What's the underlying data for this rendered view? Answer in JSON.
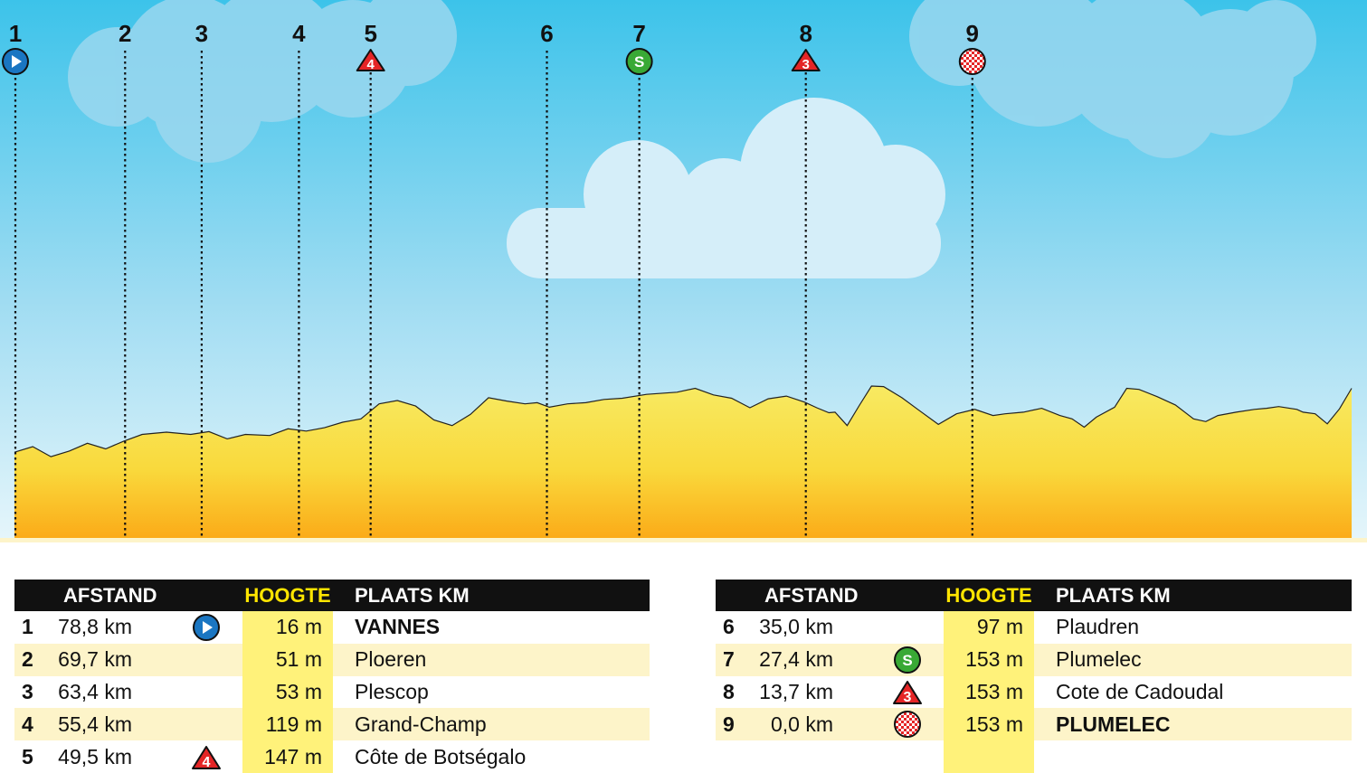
{
  "chart_data": {
    "type": "area",
    "x_unit": "km",
    "y_unit": "m",
    "profile": [
      [
        0,
        16
      ],
      [
        1.5,
        26
      ],
      [
        3.0,
        8
      ],
      [
        4.5,
        18
      ],
      [
        6.0,
        32
      ],
      [
        7.5,
        22
      ],
      [
        9.0,
        36
      ],
      [
        10.5,
        48
      ],
      [
        12.5,
        52
      ],
      [
        14.5,
        48
      ],
      [
        16.0,
        53
      ],
      [
        17.5,
        40
      ],
      [
        19.0,
        48
      ],
      [
        21.0,
        46
      ],
      [
        22.5,
        58
      ],
      [
        24.0,
        54
      ],
      [
        25.5,
        60
      ],
      [
        27.0,
        70
      ],
      [
        28.5,
        76
      ],
      [
        30.0,
        103
      ],
      [
        31.5,
        109
      ],
      [
        33.0,
        99
      ],
      [
        34.5,
        74
      ],
      [
        36.0,
        64
      ],
      [
        37.5,
        84
      ],
      [
        39.0,
        114
      ],
      [
        40.5,
        108
      ],
      [
        42.0,
        103
      ],
      [
        43.0,
        105
      ],
      [
        44.0,
        97
      ],
      [
        45.5,
        103
      ],
      [
        47.0,
        105
      ],
      [
        48.5,
        111
      ],
      [
        50.0,
        113
      ],
      [
        52.0,
        120
      ],
      [
        54.5,
        124
      ],
      [
        56.0,
        131
      ],
      [
        57.5,
        119
      ],
      [
        59.0,
        113
      ],
      [
        60.5,
        96
      ],
      [
        62.0,
        112
      ],
      [
        63.5,
        117
      ],
      [
        65.0,
        106
      ],
      [
        66.0,
        96
      ],
      [
        67.0,
        87
      ],
      [
        67.5,
        88
      ],
      [
        68.5,
        64
      ],
      [
        69.5,
        100
      ],
      [
        70.5,
        135
      ],
      [
        71.5,
        134
      ],
      [
        73.0,
        114
      ],
      [
        74.5,
        90
      ],
      [
        76.0,
        66
      ],
      [
        77.5,
        85
      ],
      [
        79.0,
        93
      ],
      [
        80.5,
        82
      ],
      [
        81.5,
        85
      ],
      [
        83.0,
        88
      ],
      [
        84.5,
        95
      ],
      [
        86.0,
        82
      ],
      [
        87.0,
        76
      ],
      [
        88.0,
        61
      ],
      [
        89.0,
        79
      ],
      [
        90.5,
        97
      ],
      [
        91.5,
        131
      ],
      [
        92.5,
        129
      ],
      [
        94.0,
        116
      ],
      [
        95.5,
        101
      ],
      [
        97.0,
        76
      ],
      [
        98.0,
        71
      ],
      [
        99.0,
        82
      ],
      [
        100.5,
        88
      ],
      [
        102.0,
        93
      ],
      [
        103.0,
        95
      ],
      [
        104.0,
        98
      ],
      [
        105.5,
        93
      ],
      [
        106.0,
        88
      ],
      [
        107.0,
        85
      ],
      [
        108.0,
        67
      ],
      [
        109.0,
        94
      ],
      [
        110.0,
        131
      ]
    ],
    "markers": [
      {
        "id": "1",
        "x": 0,
        "icon": "start-icon"
      },
      {
        "id": "2",
        "x": 9.1,
        "icon": ""
      },
      {
        "id": "3",
        "x": 15.4,
        "icon": ""
      },
      {
        "id": "4",
        "x": 23.4,
        "icon": ""
      },
      {
        "id": "5",
        "x": 29.3,
        "icon": "cat4-icon"
      },
      {
        "id": "6",
        "x": 43.8,
        "icon": ""
      },
      {
        "id": "7",
        "x": 51.4,
        "icon": "sprint-icon"
      },
      {
        "id": "8",
        "x": 65.1,
        "icon": "cat3-icon"
      },
      {
        "id": "9",
        "x": 78.8,
        "icon": "finish-icon"
      }
    ],
    "xlim": [
      0,
      110
    ],
    "ylim": [
      0,
      135
    ]
  },
  "colors": {
    "sky_top": "#3cc3ea",
    "sky_bottom": "#e3f5fb",
    "terrain_top": "#f8ea62",
    "terrain_bottom": "#fbb21a",
    "start_blue": "#1a76c2",
    "climb_red": "#e52526",
    "sprint_green": "#39a935",
    "hoogte_yellow": "#fff27a",
    "header_black": "#111111",
    "row_alt": "#fdf4c9"
  },
  "table": {
    "headers": {
      "afstand": "AFSTAND",
      "hoogte": "HOOGTE",
      "plaats": "PLAATS KM"
    },
    "left": [
      {
        "nr": "1",
        "afstand": "78,8 km",
        "icon": "start-icon",
        "hoogte": "16 m",
        "plaats": "VANNES",
        "bold": true
      },
      {
        "nr": "2",
        "afstand": "69,7 km",
        "icon": "",
        "hoogte": "51 m",
        "plaats": "Ploeren",
        "bold": false
      },
      {
        "nr": "3",
        "afstand": "63,4 km",
        "icon": "",
        "hoogte": "53 m",
        "plaats": "Plescop",
        "bold": false
      },
      {
        "nr": "4",
        "afstand": "55,4 km",
        "icon": "",
        "hoogte": "119 m",
        "plaats": "Grand-Champ",
        "bold": false
      },
      {
        "nr": "5",
        "afstand": "49,5 km",
        "icon": "cat4-icon",
        "hoogte": "147 m",
        "plaats": "Côte de Botségalo",
        "bold": false
      }
    ],
    "right": [
      {
        "nr": "6",
        "afstand": "35,0 km",
        "icon": "",
        "hoogte": "97 m",
        "plaats": "Plaudren",
        "bold": false
      },
      {
        "nr": "7",
        "afstand": "27,4 km",
        "icon": "sprint-icon",
        "hoogte": "153 m",
        "plaats": "Plumelec",
        "bold": false
      },
      {
        "nr": "8",
        "afstand": "13,7 km",
        "icon": "cat3-icon",
        "hoogte": "153 m",
        "plaats": "Cote de Cadoudal",
        "bold": false
      },
      {
        "nr": "9",
        "afstand": "0,0 km",
        "icon": "finish-icon",
        "hoogte": "153 m",
        "plaats": "PLUMELEC",
        "bold": true
      },
      {
        "nr": "",
        "afstand": "",
        "icon": "",
        "hoogte": "",
        "plaats": "",
        "bold": false
      }
    ]
  }
}
